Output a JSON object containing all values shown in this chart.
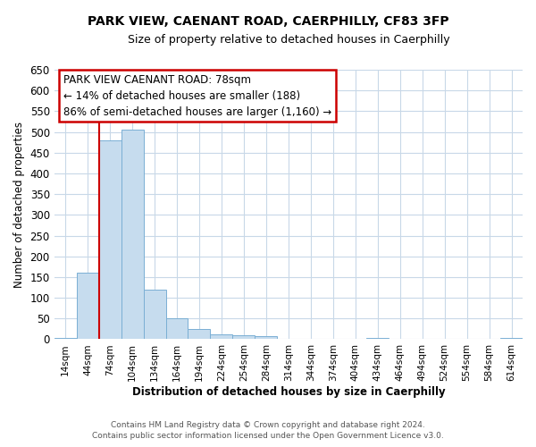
{
  "title": "PARK VIEW, CAENANT ROAD, CAERPHILLY, CF83 3FP",
  "subtitle": "Size of property relative to detached houses in Caerphilly",
  "xlabel": "Distribution of detached houses by size in Caerphilly",
  "ylabel": "Number of detached properties",
  "bin_labels": [
    "14sqm",
    "44sqm",
    "74sqm",
    "104sqm",
    "134sqm",
    "164sqm",
    "194sqm",
    "224sqm",
    "254sqm",
    "284sqm",
    "314sqm",
    "344sqm",
    "374sqm",
    "404sqm",
    "434sqm",
    "464sqm",
    "494sqm",
    "524sqm",
    "554sqm",
    "584sqm",
    "614sqm"
  ],
  "bin_values": [
    3,
    160,
    480,
    505,
    120,
    50,
    25,
    12,
    10,
    7,
    0,
    0,
    0,
    0,
    4,
    0,
    0,
    0,
    0,
    0,
    3
  ],
  "bar_color": "#c6dcee",
  "bar_edge_color": "#7aafd4",
  "ylim": [
    0,
    650
  ],
  "yticks": [
    0,
    50,
    100,
    150,
    200,
    250,
    300,
    350,
    400,
    450,
    500,
    550,
    600,
    650
  ],
  "property_line_color": "#cc0000",
  "annotation_title": "PARK VIEW CAENANT ROAD: 78sqm",
  "annotation_line1": "← 14% of detached houses are smaller (188)",
  "annotation_line2": "86% of semi-detached houses are larger (1,160) →",
  "annotation_box_color": "#ffffff",
  "annotation_box_edge": "#cc0000",
  "footer1": "Contains HM Land Registry data © Crown copyright and database right 2024.",
  "footer2": "Contains public sector information licensed under the Open Government Licence v3.0.",
  "background_color": "#ffffff",
  "grid_color": "#c8d8e8",
  "title_fontsize": 10,
  "subtitle_fontsize": 9
}
